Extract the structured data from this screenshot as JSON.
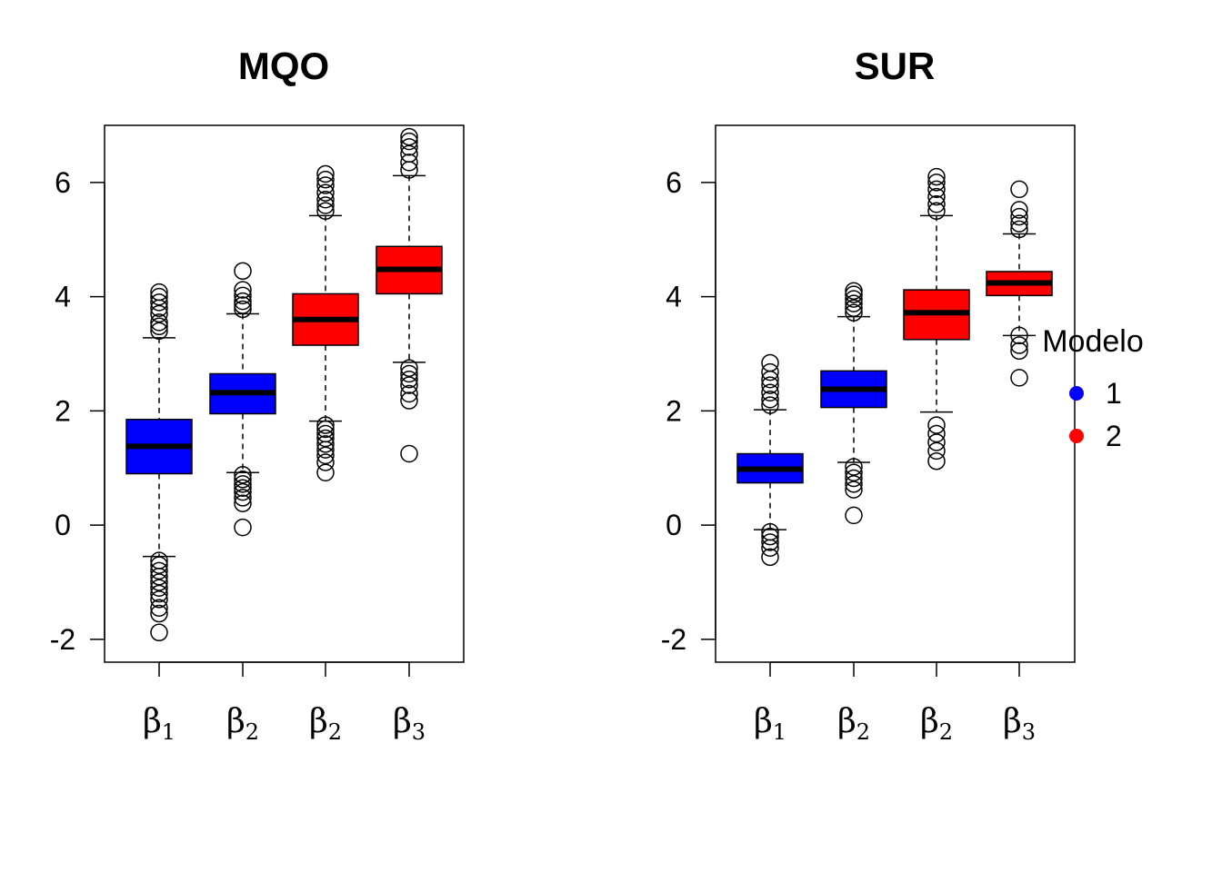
{
  "chart_data": [
    {
      "type": "boxplot",
      "title": "MQO",
      "ylim": [
        -2.4,
        7.0
      ],
      "yticks": [
        "-2",
        "0",
        "2",
        "4",
        "6"
      ],
      "categories": [
        {
          "greek": "β",
          "sub": "1",
          "model": "1"
        },
        {
          "greek": "β",
          "sub": "2",
          "model": "1"
        },
        {
          "greek": "β",
          "sub": "2",
          "model": "2"
        },
        {
          "greek": "β",
          "sub": "3",
          "model": "2"
        }
      ],
      "boxes": [
        {
          "whisker_low": -0.55,
          "q1": 0.9,
          "median": 1.38,
          "q3": 1.85,
          "whisker_high": 3.28,
          "outliers": [
            -1.88,
            -1.55,
            -1.45,
            -1.3,
            -1.2,
            -1.1,
            -1.0,
            -0.9,
            -0.8,
            -0.7,
            -0.62,
            3.4,
            3.48,
            3.55,
            3.7,
            3.8,
            3.9,
            4.0,
            4.08
          ]
        },
        {
          "whisker_low": 0.92,
          "q1": 1.95,
          "median": 2.32,
          "q3": 2.65,
          "whisker_high": 3.7,
          "outliers": [
            -0.04,
            0.38,
            0.48,
            0.58,
            0.65,
            0.72,
            0.8,
            0.88,
            3.78,
            3.85,
            3.92,
            4.02,
            4.12,
            4.45
          ]
        },
        {
          "whisker_low": 1.82,
          "q1": 3.15,
          "median": 3.6,
          "q3": 4.05,
          "whisker_high": 5.42,
          "outliers": [
            0.92,
            1.1,
            1.22,
            1.32,
            1.42,
            1.52,
            1.6,
            1.68,
            1.75,
            5.5,
            5.6,
            5.7,
            5.82,
            5.95,
            6.05,
            6.15
          ]
        },
        {
          "whisker_low": 2.85,
          "q1": 4.05,
          "median": 4.48,
          "q3": 4.88,
          "whisker_high": 6.12,
          "outliers": [
            1.25,
            2.18,
            2.3,
            2.45,
            2.55,
            2.65,
            2.75,
            6.22,
            6.35,
            6.5,
            6.62,
            6.72,
            6.8
          ]
        }
      ]
    },
    {
      "type": "boxplot",
      "title": "SUR",
      "ylim": [
        -2.4,
        7.0
      ],
      "yticks": [
        "-2",
        "0",
        "2",
        "4",
        "6"
      ],
      "categories": [
        {
          "greek": "β",
          "sub": "1",
          "model": "1"
        },
        {
          "greek": "β",
          "sub": "2",
          "model": "1"
        },
        {
          "greek": "β",
          "sub": "2",
          "model": "2"
        },
        {
          "greek": "β",
          "sub": "3",
          "model": "2"
        }
      ],
      "boxes": [
        {
          "whisker_low": -0.08,
          "q1": 0.74,
          "median": 0.98,
          "q3": 1.25,
          "whisker_high": 2.02,
          "outliers": [
            -0.56,
            -0.4,
            -0.3,
            -0.2,
            -0.12,
            2.1,
            2.2,
            2.32,
            2.45,
            2.55,
            2.68,
            2.84
          ]
        },
        {
          "whisker_low": 1.1,
          "q1": 2.06,
          "median": 2.38,
          "q3": 2.7,
          "whisker_high": 3.65,
          "outliers": [
            0.17,
            0.62,
            0.72,
            0.82,
            0.92,
            1.02,
            3.72,
            3.8,
            3.88,
            3.96,
            4.04,
            4.1
          ]
        },
        {
          "whisker_low": 1.98,
          "q1": 3.25,
          "median": 3.72,
          "q3": 4.12,
          "whisker_high": 5.42,
          "outliers": [
            1.12,
            1.3,
            1.45,
            1.6,
            1.75,
            5.5,
            5.62,
            5.75,
            5.88,
            6.0,
            6.1
          ]
        },
        {
          "whisker_low": 3.32,
          "q1": 4.02,
          "median": 4.24,
          "q3": 4.44,
          "whisker_high": 5.1,
          "outliers": [
            2.58,
            3.05,
            3.15,
            3.32,
            5.18,
            5.28,
            5.4,
            5.52,
            5.88
          ]
        }
      ],
      "legend": {
        "title": "Modelo",
        "position": "right",
        "items": [
          {
            "label": "1",
            "color": "#0000ff"
          },
          {
            "label": "2",
            "color": "#ff0000"
          }
        ]
      }
    }
  ],
  "model_colors": {
    "1": "#0000ff",
    "2": "#ff0000"
  }
}
